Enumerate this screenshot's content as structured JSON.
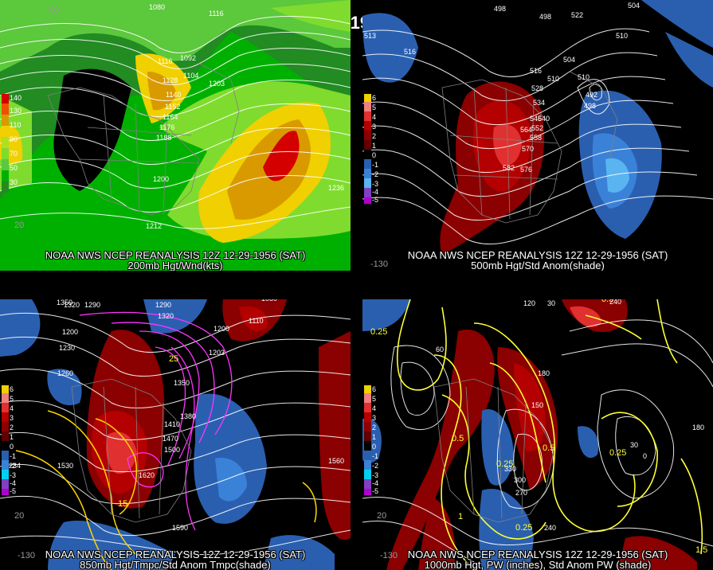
{
  "title": "12Z 12-29-1956 (SAT)",
  "panels": [
    {
      "credit": "NOAA NWS NCEP REANALYSIS 12Z 12-29-1956 (SAT)",
      "subtitle": "200mb Hgt/Wnd(kts)",
      "colorbar": [
        "140",
        "130",
        "110",
        "90",
        "70",
        "50",
        "30"
      ],
      "contour_labels": [
        "1080",
        "1116",
        "1092",
        "1116",
        "1128",
        "1104",
        "1140",
        "1152",
        "1164",
        "1176",
        "1188",
        "1200",
        "1212",
        "1236",
        "1203",
        "60",
        "20"
      ],
      "lat_labels": [
        "60",
        "20"
      ]
    },
    {
      "credit": "NOAA NWS NCEP REANALYSIS 12Z 12-29-1956 (SAT)",
      "subtitle": "500mb Hgt/Std Anom(shade)",
      "colorbar": [
        "6",
        "5",
        "4",
        "3",
        "2",
        "1",
        "0",
        "-1",
        "-2",
        "-3",
        "-4",
        "-5"
      ],
      "contour_labels": [
        "498",
        "498",
        "504",
        "522",
        "510",
        "516",
        "504",
        "516",
        "510",
        "528",
        "534",
        "546",
        "540",
        "552",
        "558",
        "564",
        "570",
        "576",
        "582",
        "492",
        "498",
        "510",
        "513"
      ],
      "lat_labels": [
        "-130"
      ]
    },
    {
      "credit": "NOAA NWS NCEP REANALYSIS 12Z 12-29-1956 (SAT)",
      "subtitle": "850mb Hgt/Tmpc/Std Anom Tmpc(shade)",
      "colorbar": [
        "6",
        "5",
        "4",
        "3",
        "2",
        "1",
        "0",
        "-1",
        "-2",
        "-3",
        "-4",
        "-5"
      ],
      "contour_labels": [
        "1350",
        "1320",
        "1290",
        "1290",
        "1320",
        "1200",
        "1230",
        "1260",
        "1350",
        "1380",
        "1410",
        "1470",
        "1500",
        "1530",
        "1560",
        "1590",
        "1620",
        "1080",
        "1110",
        "1200",
        "1203",
        "1234",
        "25",
        "15"
      ],
      "lat_labels": [
        "20",
        "-130"
      ]
    },
    {
      "credit": "NOAA NWS NCEP REANALYSIS 12Z 12-29-1956 (SAT)",
      "subtitle": "1000mb Hgt, PW (inches), Std Anom PW (shade)",
      "colorbar": [
        "6",
        "5",
        "4",
        "3",
        "2",
        "1",
        "0",
        "-1",
        "-2",
        "-3",
        "-4",
        "-5"
      ],
      "contour_labels": [
        "0.25",
        "0.5",
        "0.25",
        "0.25",
        "0.5",
        "1",
        "0.25",
        "0.5",
        "120",
        "30",
        "60",
        "180",
        "150",
        "240",
        "270",
        "300",
        "330",
        "30",
        "0",
        "180",
        "240",
        "1.5"
      ],
      "lat_labels": [
        "20",
        "-130"
      ]
    }
  ]
}
